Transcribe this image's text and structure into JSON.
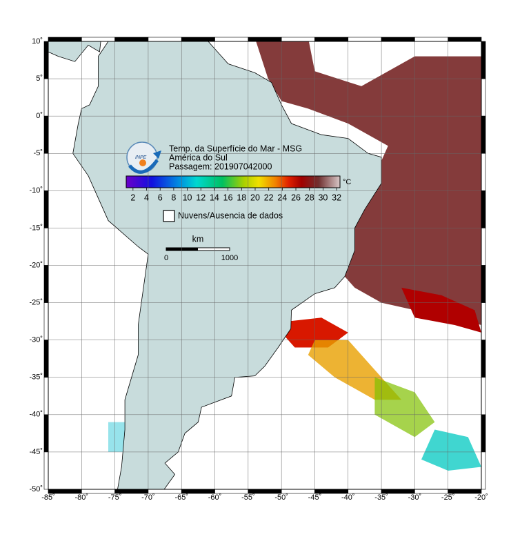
{
  "title_lines": [
    "Temp. da Superfície do Mar - MSG",
    "América do Sul",
    "Passagem: 201907042000"
  ],
  "logo_text": "INPE",
  "colorbar": {
    "unit": "°C",
    "lim": [
      1,
      32.5
    ],
    "ticks": [
      2,
      4,
      6,
      8,
      10,
      12,
      14,
      16,
      18,
      20,
      22,
      24,
      26,
      28,
      30,
      32
    ]
  },
  "legend": "Nuvens/Ausencia de dados",
  "scale_bar": {
    "unit": "km",
    "labels": [
      0,
      1000
    ]
  },
  "map": {
    "xlim": [
      -85,
      -20
    ],
    "ylim": [
      -50,
      10
    ],
    "xticks": [
      {
        "value": -85,
        "label": "-85˚"
      },
      {
        "value": -80,
        "label": "-80˚"
      },
      {
        "value": -75,
        "label": "-75˚"
      },
      {
        "value": -70,
        "label": "-70˚"
      },
      {
        "value": -65,
        "label": "-65˚"
      },
      {
        "value": -60,
        "label": "-60˚"
      },
      {
        "value": -55,
        "label": "-55˚"
      },
      {
        "value": -50,
        "label": "-50˚"
      },
      {
        "value": -45,
        "label": "-45˚"
      },
      {
        "value": -40,
        "label": "-40˚"
      },
      {
        "value": -35,
        "label": "-35˚"
      },
      {
        "value": -30,
        "label": "-30˚"
      },
      {
        "value": -25,
        "label": "-25˚"
      },
      {
        "value": -20,
        "label": "-20˚"
      }
    ],
    "yticks": [
      {
        "value": 10,
        "label": "10˚"
      },
      {
        "value": 5,
        "label": "5˚"
      },
      {
        "value": 0,
        "label": "0˚"
      },
      {
        "value": -5,
        "label": "-5˚"
      },
      {
        "value": -10,
        "label": "-10˚"
      },
      {
        "value": -15,
        "label": "-15˚"
      },
      {
        "value": -20,
        "label": "-20˚"
      },
      {
        "value": -25,
        "label": "-25˚"
      },
      {
        "value": -30,
        "label": "-30˚"
      },
      {
        "value": -35,
        "label": "-35˚"
      },
      {
        "value": -40,
        "label": "-40˚"
      },
      {
        "value": -45,
        "label": "-45˚"
      },
      {
        "value": -50,
        "label": "-50˚"
      }
    ]
  }
}
